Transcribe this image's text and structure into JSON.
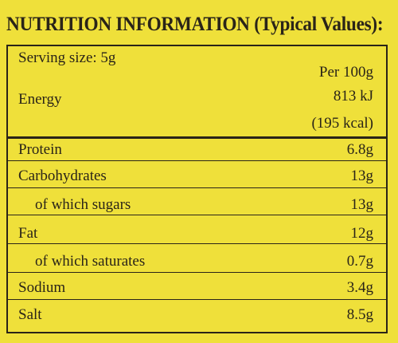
{
  "title": "NUTRITION INFORMATION (Typical Values):",
  "serving_size": "Serving size: 5g",
  "column_header": "Per 100g",
  "energy": {
    "label": "Energy",
    "kj": "813 kJ",
    "kcal": "(195 kcal)"
  },
  "rows": [
    {
      "label": "Protein",
      "value": "6.8g"
    },
    {
      "label": "Carbohydrates",
      "value": "13g"
    },
    {
      "label": "of which sugars",
      "value": "13g"
    },
    {
      "label": "Fat",
      "value": "12g"
    },
    {
      "label": "of which saturates",
      "value": "0.7g"
    },
    {
      "label": "Sodium",
      "value": "3.4g"
    },
    {
      "label": "Salt",
      "value": "8.5g"
    }
  ],
  "colors": {
    "label_background": "#efe03a",
    "ink": "#2a2418"
  }
}
